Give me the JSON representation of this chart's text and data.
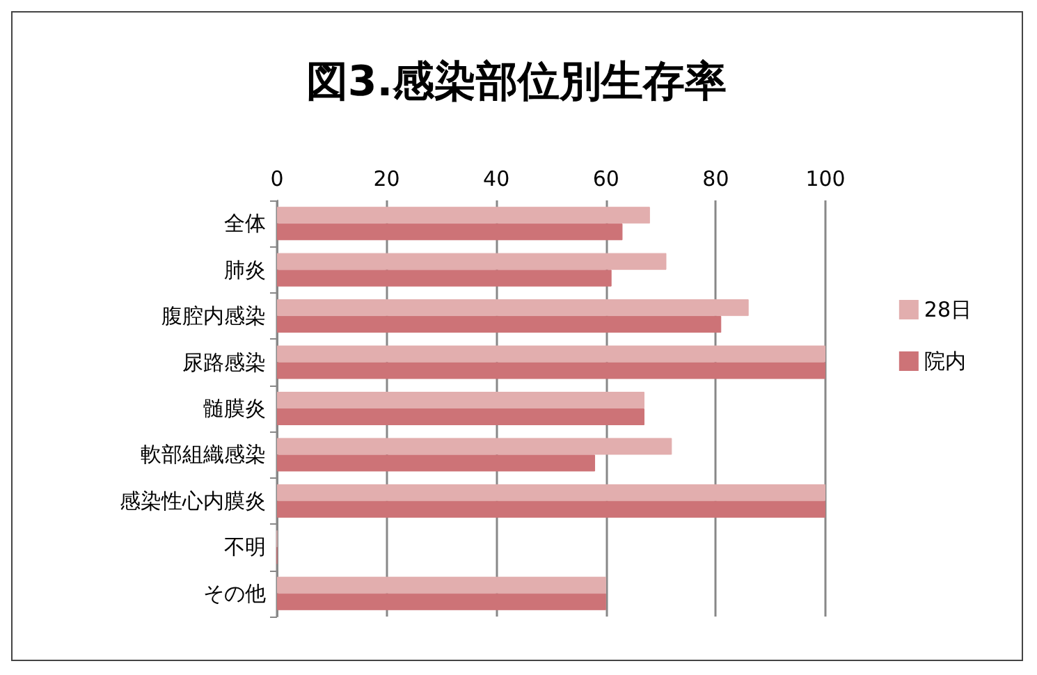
{
  "chart_data": {
    "type": "bar",
    "orientation": "horizontal",
    "title": "図3.感染部位別生存率",
    "categories": [
      "全体",
      "肺炎",
      "腹腔内感染",
      "尿路感染",
      "髄膜炎",
      "軟部組織感染",
      "感染性心内膜炎",
      "不明",
      "その他"
    ],
    "series": [
      {
        "name": "28日",
        "color": "#e2aeae",
        "values": [
          68,
          71,
          86,
          100,
          67,
          72,
          100,
          0,
          60
        ]
      },
      {
        "name": "院内",
        "color": "#cd7377",
        "values": [
          63,
          61,
          81,
          100,
          67,
          58,
          100,
          0,
          60
        ]
      }
    ],
    "xlim": [
      0,
      100
    ],
    "xticks": [
      0,
      20,
      40,
      60,
      80,
      100
    ],
    "grid": "x",
    "legend": "right"
  }
}
